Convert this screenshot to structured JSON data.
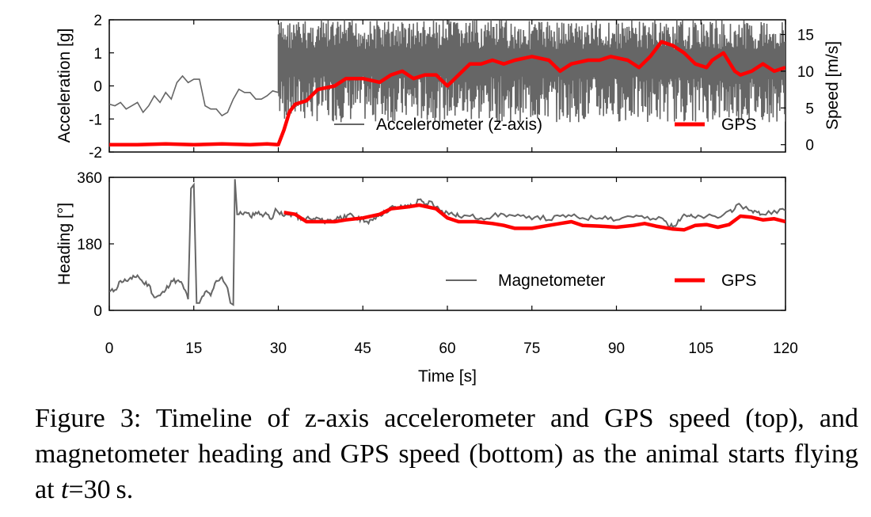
{
  "chart_data": [
    {
      "type": "line",
      "xlabel": "Time [s]",
      "xlim": [
        0,
        120
      ],
      "xticks": [
        "0",
        "15",
        "30",
        "45",
        "60",
        "75",
        "90",
        "105",
        "120"
      ],
      "ylabel": "Acceleration [g]",
      "ylim": [
        -2,
        2
      ],
      "yticks": [
        "2",
        "1",
        "0",
        "-1",
        "-2"
      ],
      "y2label": "Speed [m/s]",
      "y2lim": [
        -1,
        17
      ],
      "y2ticks": [
        "15",
        "10",
        "5",
        "0"
      ],
      "legend_position": "bottom-right",
      "series": [
        {
          "name": "Accelerometer (z-axis)",
          "axis": "left",
          "color": "#666666",
          "ground_points": [
            [
              0,
              -0.55
            ],
            [
              1,
              -0.6
            ],
            [
              2,
              -0.5
            ],
            [
              3,
              -0.7
            ],
            [
              4,
              -0.6
            ],
            [
              5,
              -0.5
            ],
            [
              6,
              -0.8
            ],
            [
              7,
              -0.6
            ],
            [
              8,
              -0.3
            ],
            [
              9,
              -0.5
            ],
            [
              10,
              -0.2
            ],
            [
              11,
              -0.4
            ],
            [
              12,
              0.1
            ],
            [
              13,
              0.3
            ],
            [
              14,
              0.1
            ],
            [
              15,
              0.2
            ],
            [
              16,
              0.2
            ],
            [
              17,
              -0.6
            ],
            [
              18,
              -0.7
            ],
            [
              19,
              -0.7
            ],
            [
              20,
              -0.9
            ],
            [
              21,
              -0.8
            ],
            [
              22,
              -0.4
            ],
            [
              23,
              -0.1
            ],
            [
              24,
              -0.2
            ],
            [
              25,
              -0.2
            ],
            [
              26,
              -0.4
            ],
            [
              27,
              -0.4
            ],
            [
              28,
              -0.3
            ],
            [
              29,
              -0.15
            ],
            [
              30,
              -0.2
            ]
          ],
          "flight_from": 30,
          "flight_to": 120,
          "flight_oscillation_range": [
            -1.7,
            2.0
          ]
        },
        {
          "name": "GPS",
          "axis": "right",
          "color": "#ff0000",
          "points": [
            [
              0,
              0
            ],
            [
              5,
              0
            ],
            [
              10,
              0.1
            ],
            [
              15,
              0
            ],
            [
              20,
              0.1
            ],
            [
              25,
              0
            ],
            [
              28,
              0.1
            ],
            [
              30,
              0
            ],
            [
              31,
              2
            ],
            [
              32,
              4.5
            ],
            [
              33,
              5.5
            ],
            [
              35,
              6
            ],
            [
              37,
              7.5
            ],
            [
              40,
              8
            ],
            [
              42,
              9
            ],
            [
              45,
              9
            ],
            [
              48,
              8.5
            ],
            [
              50,
              9.5
            ],
            [
              52,
              10
            ],
            [
              54,
              9
            ],
            [
              56,
              9.5
            ],
            [
              58,
              9.5
            ],
            [
              60,
              8
            ],
            [
              62,
              9.5
            ],
            [
              64,
              11
            ],
            [
              66,
              11
            ],
            [
              68,
              11.5
            ],
            [
              70,
              11
            ],
            [
              72,
              11.5
            ],
            [
              75,
              12
            ],
            [
              78,
              11.5
            ],
            [
              80,
              10
            ],
            [
              82,
              11
            ],
            [
              85,
              11.5
            ],
            [
              87,
              11.5
            ],
            [
              89,
              12
            ],
            [
              92,
              11.5
            ],
            [
              94,
              10.5
            ],
            [
              96,
              12
            ],
            [
              98,
              14
            ],
            [
              100,
              13.5
            ],
            [
              102,
              12.5
            ],
            [
              104,
              11
            ],
            [
              106,
              10.5
            ],
            [
              107,
              11.5
            ],
            [
              109,
              12.5
            ],
            [
              111,
              10
            ],
            [
              112,
              9.5
            ],
            [
              114,
              10
            ],
            [
              116,
              11
            ],
            [
              118,
              10
            ],
            [
              120,
              10.5
            ]
          ]
        }
      ]
    },
    {
      "type": "line",
      "xlabel": "Time [s]",
      "xlim": [
        0,
        120
      ],
      "xticks": [
        "0",
        "15",
        "30",
        "45",
        "60",
        "75",
        "90",
        "105",
        "120"
      ],
      "ylabel": "Heading [°]",
      "ylim": [
        0,
        360
      ],
      "yticks": [
        "360",
        "180",
        "0"
      ],
      "legend_position": "bottom-right",
      "series": [
        {
          "name": "Magnetometer",
          "color": "#666666",
          "points": [
            [
              0,
              50
            ],
            [
              1,
              55
            ],
            [
              2,
              80
            ],
            [
              3,
              80
            ],
            [
              4,
              85
            ],
            [
              5,
              95
            ],
            [
              6,
              75
            ],
            [
              7,
              70
            ],
            [
              8,
              35
            ],
            [
              9,
              40
            ],
            [
              10,
              55
            ],
            [
              11,
              80
            ],
            [
              12,
              80
            ],
            [
              13,
              70
            ],
            [
              14,
              30
            ],
            [
              14.5,
              330
            ],
            [
              15,
              340
            ],
            [
              15.5,
              20
            ],
            [
              16,
              20
            ],
            [
              17,
              50
            ],
            [
              18,
              40
            ],
            [
              19,
              80
            ],
            [
              20,
              90
            ],
            [
              21,
              60
            ],
            [
              21.5,
              20
            ],
            [
              22,
              15
            ],
            [
              22.3,
              355
            ],
            [
              22.7,
              260
            ],
            [
              23,
              260
            ],
            [
              24,
              265
            ],
            [
              25,
              255
            ],
            [
              26,
              265
            ],
            [
              27,
              260
            ],
            [
              28,
              260
            ],
            [
              29,
              250
            ],
            [
              29.5,
              275
            ],
            [
              30,
              265
            ],
            [
              31,
              255
            ],
            [
              32,
              260
            ],
            [
              33,
              260
            ],
            [
              34,
              245
            ],
            [
              35,
              250
            ],
            [
              36,
              245
            ],
            [
              37,
              250
            ],
            [
              38,
              240
            ],
            [
              39,
              245
            ],
            [
              40,
              245
            ],
            [
              41,
              255
            ],
            [
              42,
              250
            ],
            [
              43,
              260
            ],
            [
              44,
              245
            ],
            [
              45,
              250
            ],
            [
              46,
              235
            ],
            [
              47,
              250
            ],
            [
              48,
              260
            ],
            [
              49,
              265
            ],
            [
              50,
              280
            ],
            [
              51,
              275
            ],
            [
              52,
              280
            ],
            [
              53,
              285
            ],
            [
              54,
              280
            ],
            [
              55,
              300
            ],
            [
              56,
              285
            ],
            [
              57,
              295
            ],
            [
              58,
              280
            ],
            [
              59,
              270
            ],
            [
              60,
              265
            ],
            [
              61,
              260
            ],
            [
              62,
              255
            ],
            [
              64,
              255
            ],
            [
              66,
              250
            ],
            [
              68,
              255
            ],
            [
              70,
              260
            ],
            [
              72,
              255
            ],
            [
              74,
              250
            ],
            [
              76,
              255
            ],
            [
              78,
              245
            ],
            [
              80,
              255
            ],
            [
              82,
              255
            ],
            [
              84,
              250
            ],
            [
              86,
              250
            ],
            [
              88,
              255
            ],
            [
              90,
              245
            ],
            [
              92,
              255
            ],
            [
              94,
              255
            ],
            [
              96,
              245
            ],
            [
              98,
              250
            ],
            [
              99,
              235
            ],
            [
              100,
              225
            ],
            [
              101,
              245
            ],
            [
              102,
              260
            ],
            [
              103,
              255
            ],
            [
              104,
              250
            ],
            [
              106,
              255
            ],
            [
              108,
              250
            ],
            [
              110,
              270
            ],
            [
              111,
              275
            ],
            [
              112,
              285
            ],
            [
              114,
              270
            ],
            [
              115,
              265
            ],
            [
              116,
              260
            ],
            [
              118,
              270
            ],
            [
              120,
              270
            ]
          ]
        },
        {
          "name": "GPS",
          "color": "#ff0000",
          "points": [
            [
              31,
              265
            ],
            [
              33,
              260
            ],
            [
              35,
              240
            ],
            [
              38,
              240
            ],
            [
              40,
              240
            ],
            [
              42,
              245
            ],
            [
              45,
              250
            ],
            [
              48,
              260
            ],
            [
              50,
              275
            ],
            [
              53,
              280
            ],
            [
              55,
              285
            ],
            [
              58,
              275
            ],
            [
              60,
              250
            ],
            [
              62,
              240
            ],
            [
              65,
              240
            ],
            [
              68,
              235
            ],
            [
              70,
              230
            ],
            [
              72,
              222
            ],
            [
              75,
              222
            ],
            [
              78,
              230
            ],
            [
              80,
              235
            ],
            [
              82,
              240
            ],
            [
              84,
              230
            ],
            [
              87,
              228
            ],
            [
              90,
              225
            ],
            [
              93,
              230
            ],
            [
              95,
              235
            ],
            [
              97,
              228
            ],
            [
              100,
              220
            ],
            [
              102,
              218
            ],
            [
              104,
              230
            ],
            [
              106,
              232
            ],
            [
              108,
              225
            ],
            [
              110,
              232
            ],
            [
              112,
              255
            ],
            [
              114,
              252
            ],
            [
              116,
              245
            ],
            [
              118,
              248
            ],
            [
              120,
              240
            ]
          ]
        }
      ]
    }
  ],
  "caption": {
    "text": "Figure 3: Timeline of z-axis accelerometer and GPS speed (top), and magnetometer heading and GPS speed (bottom) as the animal starts flying at ",
    "math_var": "t",
    "math_rest": "=30",
    "unit": "s."
  }
}
